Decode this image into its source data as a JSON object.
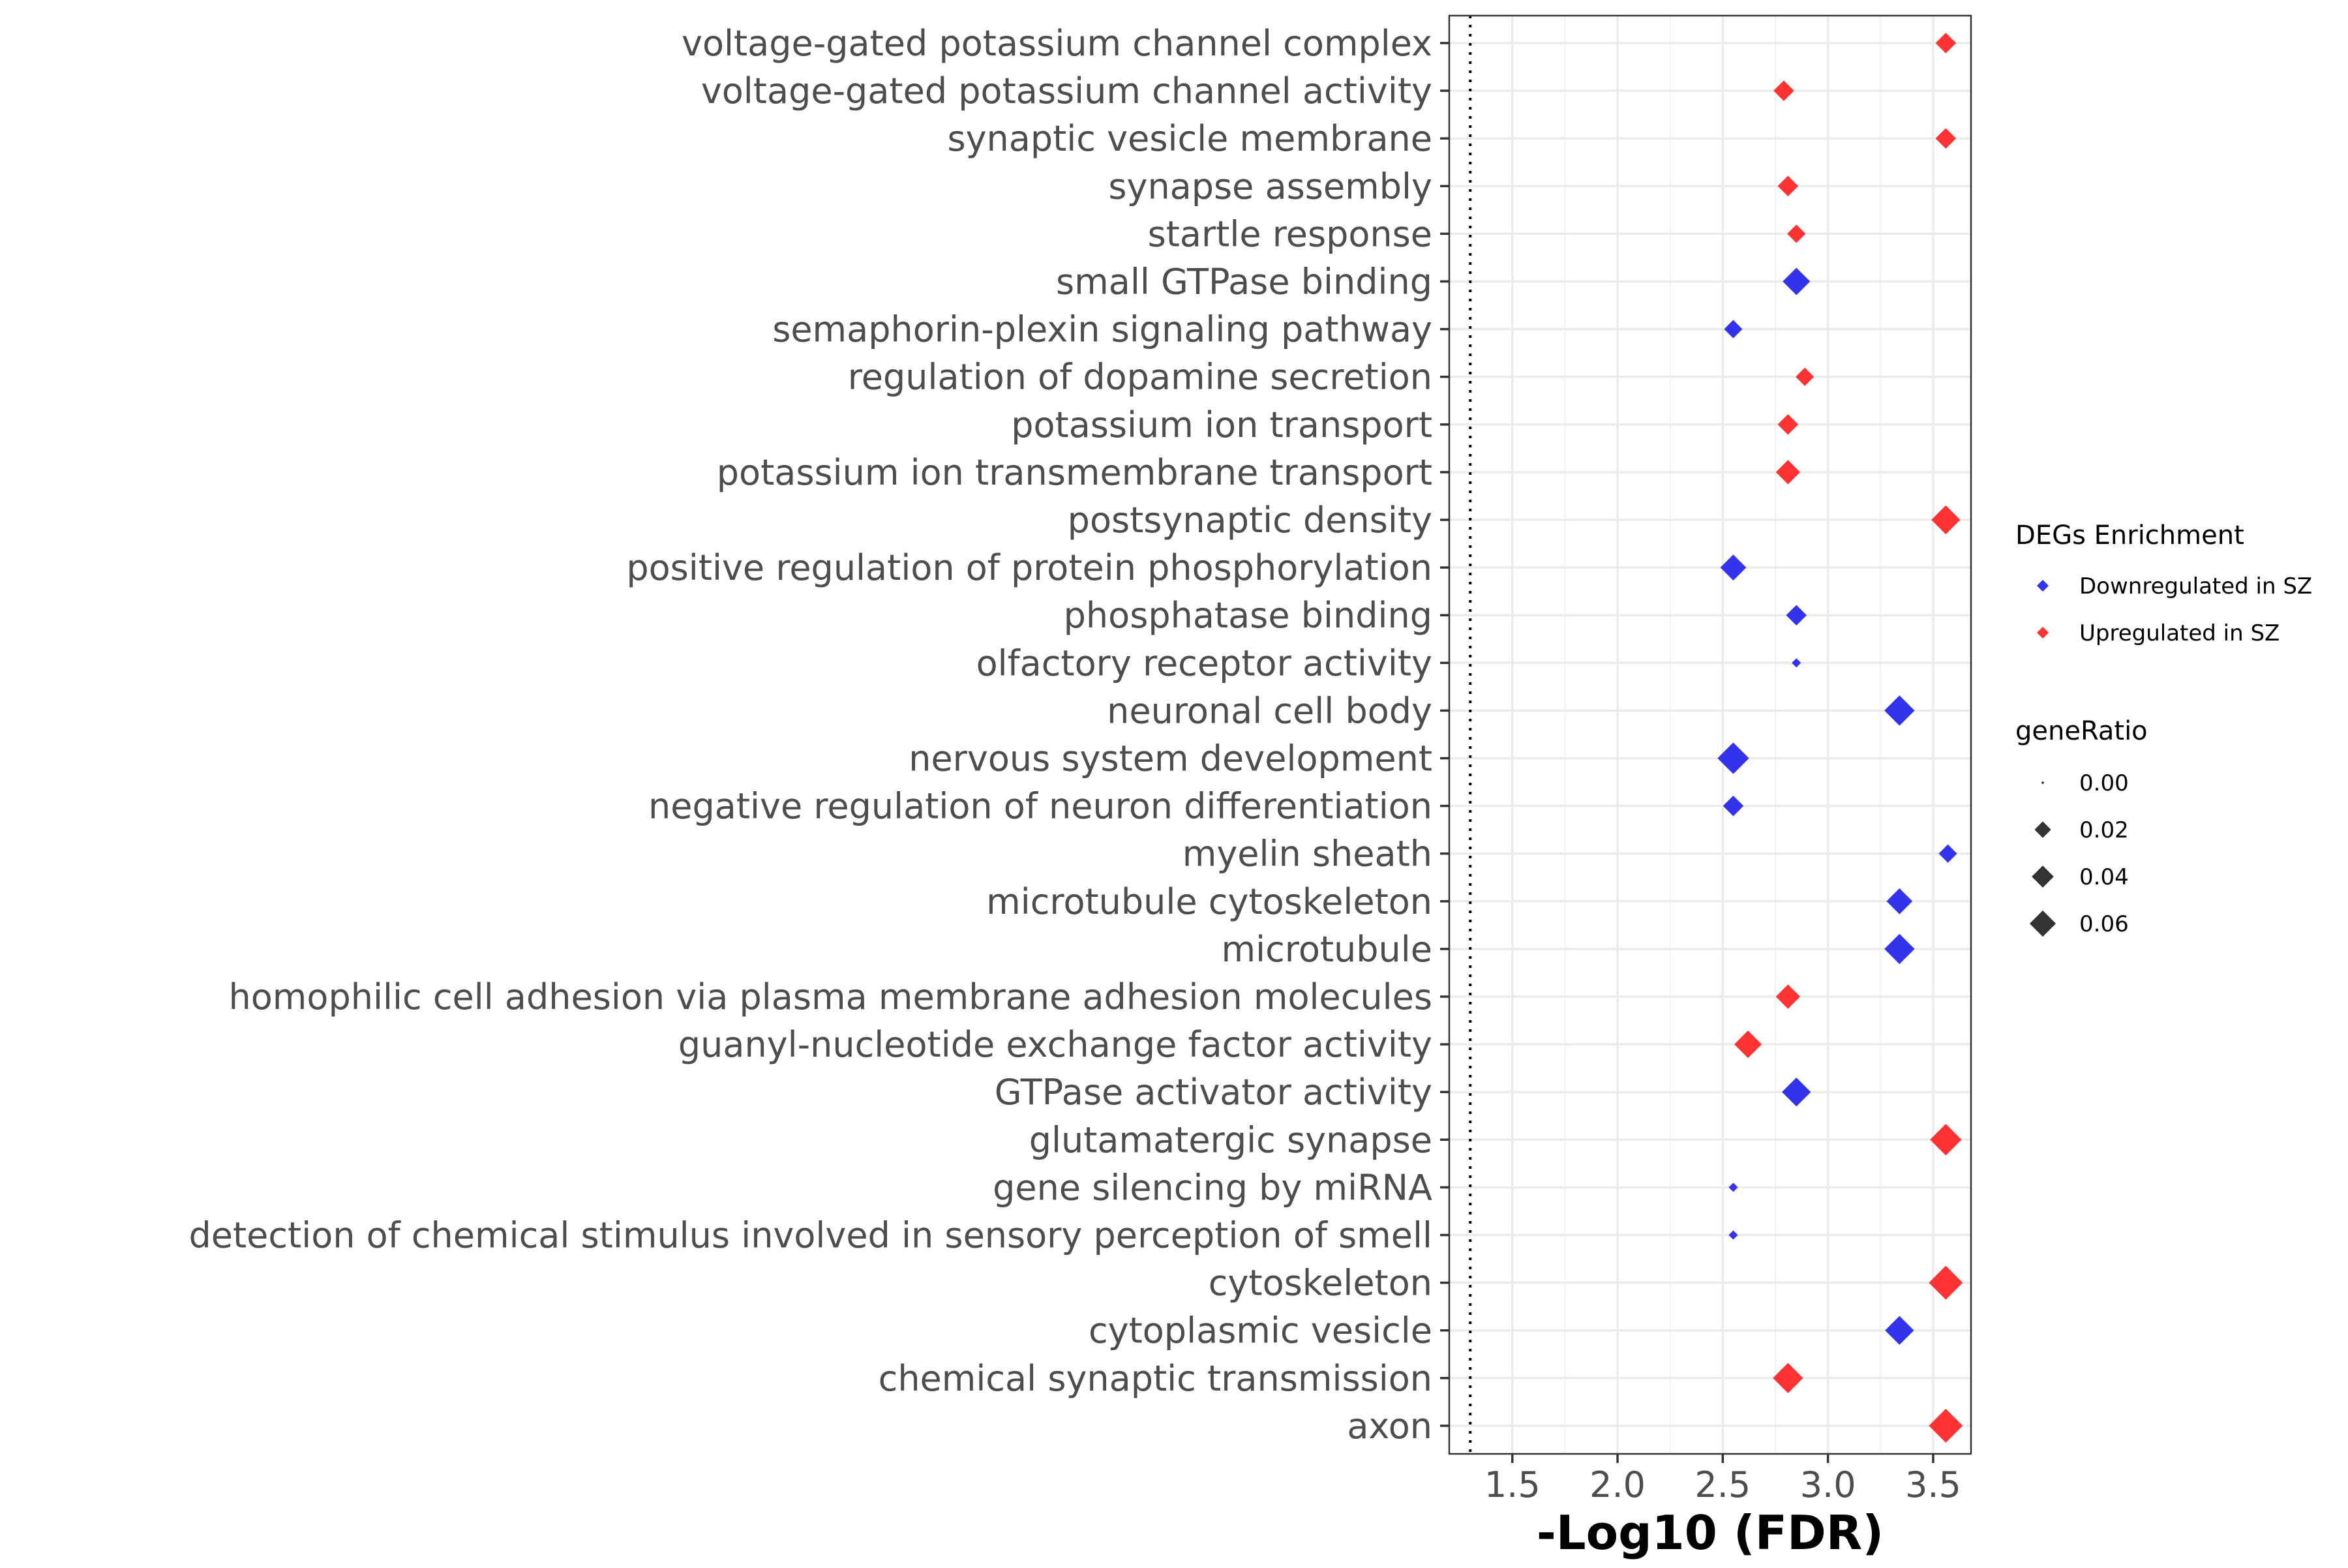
{
  "chart_data": {
    "type": "scatter",
    "xlabel": "-Log10 (FDR)",
    "x_ticks": [
      "1.5",
      "2.0",
      "2.5",
      "3.0",
      "3.5"
    ],
    "x_tick_values": [
      1.5,
      2.0,
      2.5,
      3.0,
      3.5
    ],
    "xlim": [
      1.2,
      3.68
    ],
    "reference_line_x": 1.3,
    "grid": true,
    "legend_placement": "right",
    "colors": {
      "Downregulated in SZ": "#3333ee",
      "Upregulated in SZ": "#ff3333"
    },
    "legend_color": {
      "title": "DEGs Enrichment",
      "entries": [
        "Downregulated in SZ",
        "Upregulated in SZ"
      ]
    },
    "legend_size": {
      "title": "geneRatio",
      "labels": [
        "0.00",
        "0.02",
        "0.04",
        "0.06"
      ],
      "values": [
        0.0,
        0.02,
        0.04,
        0.06
      ]
    },
    "points": [
      {
        "term": "voltage-gated potassium channel complex",
        "x": 3.56,
        "geneRatio": 0.02,
        "group": "Upregulated in SZ"
      },
      {
        "term": "voltage-gated potassium channel activity",
        "x": 2.79,
        "geneRatio": 0.02,
        "group": "Upregulated in SZ"
      },
      {
        "term": "synaptic vesicle membrane",
        "x": 3.56,
        "geneRatio": 0.02,
        "group": "Upregulated in SZ"
      },
      {
        "term": "synapse assembly",
        "x": 2.81,
        "geneRatio": 0.02,
        "group": "Upregulated in SZ"
      },
      {
        "term": "startle response",
        "x": 2.85,
        "geneRatio": 0.015,
        "group": "Upregulated in SZ"
      },
      {
        "term": "small GTPase binding",
        "x": 2.85,
        "geneRatio": 0.04,
        "group": "Downregulated in SZ"
      },
      {
        "term": "semaphorin-plexin signaling pathway",
        "x": 2.55,
        "geneRatio": 0.015,
        "group": "Downregulated in SZ"
      },
      {
        "term": "regulation of dopamine secretion",
        "x": 2.89,
        "geneRatio": 0.015,
        "group": "Upregulated in SZ"
      },
      {
        "term": "potassium ion transport",
        "x": 2.81,
        "geneRatio": 0.02,
        "group": "Upregulated in SZ"
      },
      {
        "term": "potassium ion transmembrane transport",
        "x": 2.81,
        "geneRatio": 0.03,
        "group": "Upregulated in SZ"
      },
      {
        "term": "postsynaptic density",
        "x": 3.56,
        "geneRatio": 0.045,
        "group": "Upregulated in SZ"
      },
      {
        "term": "positive regulation of protein phosphorylation",
        "x": 2.55,
        "geneRatio": 0.035,
        "group": "Downregulated in SZ"
      },
      {
        "term": "phosphatase binding",
        "x": 2.85,
        "geneRatio": 0.02,
        "group": "Downregulated in SZ"
      },
      {
        "term": "olfactory receptor activity",
        "x": 2.85,
        "geneRatio": 0.002,
        "group": "Downregulated in SZ"
      },
      {
        "term": "neuronal cell body",
        "x": 3.34,
        "geneRatio": 0.05,
        "group": "Downregulated in SZ"
      },
      {
        "term": "nervous system development",
        "x": 2.55,
        "geneRatio": 0.055,
        "group": "Downregulated in SZ"
      },
      {
        "term": "negative regulation of neuron differentiation",
        "x": 2.55,
        "geneRatio": 0.02,
        "group": "Downregulated in SZ"
      },
      {
        "term": "myelin sheath",
        "x": 3.57,
        "geneRatio": 0.015,
        "group": "Downregulated in SZ"
      },
      {
        "term": "microtubule cytoskeleton",
        "x": 3.34,
        "geneRatio": 0.035,
        "group": "Downregulated in SZ"
      },
      {
        "term": "microtubule",
        "x": 3.34,
        "geneRatio": 0.05,
        "group": "Downregulated in SZ"
      },
      {
        "term": "homophilic cell adhesion via plasma membrane adhesion molecules",
        "x": 2.81,
        "geneRatio": 0.03,
        "group": "Upregulated in SZ"
      },
      {
        "term": "guanyl-nucleotide exchange factor activity",
        "x": 2.62,
        "geneRatio": 0.04,
        "group": "Upregulated in SZ"
      },
      {
        "term": "GTPase activator activity",
        "x": 2.85,
        "geneRatio": 0.045,
        "group": "Downregulated in SZ"
      },
      {
        "term": "glutamatergic synapse",
        "x": 3.56,
        "geneRatio": 0.055,
        "group": "Upregulated in SZ"
      },
      {
        "term": "gene silencing by miRNA",
        "x": 2.55,
        "geneRatio": 0.002,
        "group": "Downregulated in SZ"
      },
      {
        "term": "detection of chemical stimulus involved in sensory perception of smell",
        "x": 2.55,
        "geneRatio": 0.002,
        "group": "Downregulated in SZ"
      },
      {
        "term": "cytoskeleton",
        "x": 3.56,
        "geneRatio": 0.065,
        "group": "Upregulated in SZ"
      },
      {
        "term": "cytoplasmic vesicle",
        "x": 3.34,
        "geneRatio": 0.045,
        "group": "Downregulated in SZ"
      },
      {
        "term": "chemical synaptic transmission",
        "x": 2.81,
        "geneRatio": 0.05,
        "group": "Upregulated in SZ"
      },
      {
        "term": "axon",
        "x": 3.56,
        "geneRatio": 0.065,
        "group": "Upregulated in SZ"
      }
    ]
  }
}
